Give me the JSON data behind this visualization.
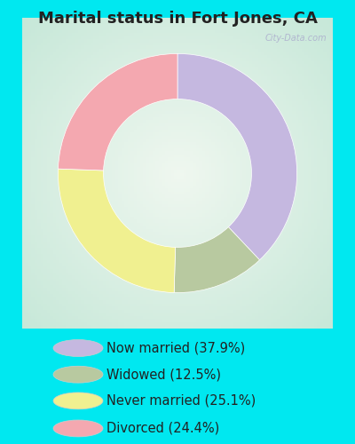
{
  "title": "Marital status in Fort Jones, CA",
  "slices": [
    {
      "label": "Now married (37.9%)",
      "value": 37.9,
      "color": "#c5b8e0"
    },
    {
      "label": "Widowed (12.5%)",
      "value": 12.5,
      "color": "#b8c9a0"
    },
    {
      "label": "Never married (25.1%)",
      "value": 25.1,
      "color": "#f0f090"
    },
    {
      "label": "Divorced (24.4%)",
      "value": 24.4,
      "color": "#f4a8b0"
    }
  ],
  "background_color": "#00e8f0",
  "chart_bg_left": "#c8e8d8",
  "chart_bg_right": "#e8f4ee",
  "title_fontsize": 13,
  "legend_fontsize": 10.5,
  "watermark": "City-Data.com",
  "start_angle": 90
}
